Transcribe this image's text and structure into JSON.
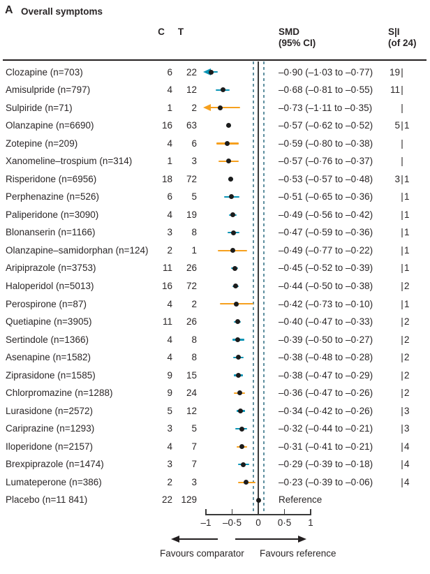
{
  "panel": {
    "label": "A",
    "title": "Overall symptoms"
  },
  "columns": {
    "c": "C",
    "t": "T",
    "smd": "SMD\n(95% CI)",
    "si": "S|I\n(of 24)",
    "si_separator": "|"
  },
  "axis": {
    "ticks": [
      "–1",
      "–0·5",
      "0",
      "0·5",
      "1"
    ],
    "range": [
      -1,
      1
    ],
    "reference_line": 0,
    "dashed_guides": [
      -0.1,
      0.1
    ],
    "left_label": "Favours comparator",
    "right_label": "Favours reference"
  },
  "colors": {
    "teal": "#0a94b5",
    "orange": "#f6a01e",
    "ink": "#1c1c1c"
  },
  "chart_data": {
    "type": "scatter",
    "variant": "forest-plot",
    "title": "A Overall symptoms",
    "xlabel": "SMD (95% CI)",
    "xlim": [
      -1,
      1
    ],
    "legend_position": "none",
    "grid": false,
    "rows": [
      {
        "name": "Clozapine (n=703)",
        "c": "6",
        "t": "22",
        "est": -0.9,
        "lo": -1.03,
        "hi": -0.77,
        "clipped": true,
        "color": "teal",
        "smd": "–0·90 (–1·03 to –0·77)",
        "si": {
          "s": "19",
          "i": ""
        }
      },
      {
        "name": "Amisulpride (n=797)",
        "c": "4",
        "t": "12",
        "est": -0.68,
        "lo": -0.81,
        "hi": -0.55,
        "clipped": false,
        "color": "teal",
        "smd": "–0·68 (–0·81 to –0·55)",
        "si": {
          "s": "11",
          "i": ""
        }
      },
      {
        "name": "Sulpiride (n=71)",
        "c": "1",
        "t": "2",
        "est": -0.73,
        "lo": -1.11,
        "hi": -0.35,
        "clipped": true,
        "color": "orange",
        "smd": "–0·73 (–1·11 to –0·35)",
        "si": {
          "s": "",
          "i": ""
        }
      },
      {
        "name": "Olanzapine (n=6690)",
        "c": "16",
        "t": "63",
        "est": -0.57,
        "lo": -0.62,
        "hi": -0.52,
        "clipped": false,
        "color": "teal",
        "smd": "–0·57 (–0·62 to –0·52)",
        "si": {
          "s": "5",
          "i": "1"
        }
      },
      {
        "name": "Zotepine (n=209)",
        "c": "4",
        "t": "6",
        "est": -0.59,
        "lo": -0.8,
        "hi": -0.38,
        "clipped": false,
        "color": "orange",
        "smd": "–0·59 (–0·80 to –0·38)",
        "si": {
          "s": "",
          "i": ""
        }
      },
      {
        "name": "Xanomeline–trospium (n=314)",
        "c": "1",
        "t": "3",
        "est": -0.57,
        "lo": -0.76,
        "hi": -0.37,
        "clipped": false,
        "color": "orange",
        "smd": "–0·57 (–0·76 to –0·37)",
        "si": {
          "s": "",
          "i": ""
        }
      },
      {
        "name": "Risperidone (n=6956)",
        "c": "18",
        "t": "72",
        "est": -0.53,
        "lo": -0.57,
        "hi": -0.48,
        "clipped": false,
        "color": "teal",
        "smd": "–0·53 (–0·57 to –0·48)",
        "si": {
          "s": "3",
          "i": "1"
        }
      },
      {
        "name": "Perphenazine (n=526)",
        "c": "6",
        "t": "5",
        "est": -0.51,
        "lo": -0.65,
        "hi": -0.36,
        "clipped": false,
        "color": "teal",
        "smd": "–0·51 (–0·65 to –0·36)",
        "si": {
          "s": "",
          "i": "1"
        }
      },
      {
        "name": "Paliperidone (n=3090)",
        "c": "4",
        "t": "19",
        "est": -0.49,
        "lo": -0.56,
        "hi": -0.42,
        "clipped": false,
        "color": "teal",
        "smd": "–0·49 (–0·56 to –0·42)",
        "si": {
          "s": "",
          "i": "1"
        }
      },
      {
        "name": "Blonanserin (n=1166)",
        "c": "3",
        "t": "8",
        "est": -0.47,
        "lo": -0.59,
        "hi": -0.36,
        "clipped": false,
        "color": "teal",
        "smd": "–0·47 (–0·59 to –0·36)",
        "si": {
          "s": "",
          "i": "1"
        }
      },
      {
        "name": "Olanzapine–samidorphan (n=124)",
        "c": "2",
        "t": "1",
        "est": -0.49,
        "lo": -0.77,
        "hi": -0.22,
        "clipped": false,
        "color": "orange",
        "smd": "–0·49 (–0·77 to –0·22)",
        "si": {
          "s": "",
          "i": "1"
        }
      },
      {
        "name": "Aripiprazole (n=3753)",
        "c": "11",
        "t": "26",
        "est": -0.45,
        "lo": -0.52,
        "hi": -0.39,
        "clipped": false,
        "color": "teal",
        "smd": "–0·45 (–0·52 to –0·39)",
        "si": {
          "s": "",
          "i": "1"
        }
      },
      {
        "name": "Haloperidol (n=5013)",
        "c": "16",
        "t": "72",
        "est": -0.44,
        "lo": -0.5,
        "hi": -0.38,
        "clipped": false,
        "color": "teal",
        "smd": "–0·44 (–0·50 to –0·38)",
        "si": {
          "s": "",
          "i": "2"
        }
      },
      {
        "name": "Perospirone (n=87)",
        "c": "4",
        "t": "2",
        "est": -0.42,
        "lo": -0.73,
        "hi": -0.1,
        "clipped": false,
        "color": "orange",
        "smd": "–0·42 (–0·73 to –0·10)",
        "si": {
          "s": "",
          "i": "1"
        }
      },
      {
        "name": "Quetiapine (n=3905)",
        "c": "11",
        "t": "26",
        "est": -0.4,
        "lo": -0.47,
        "hi": -0.33,
        "clipped": false,
        "color": "teal",
        "smd": "–0·40 (–0·47 to –0·33)",
        "si": {
          "s": "",
          "i": "2"
        }
      },
      {
        "name": "Sertindole (n=1366)",
        "c": "4",
        "t": "8",
        "est": -0.39,
        "lo": -0.5,
        "hi": -0.27,
        "clipped": false,
        "color": "teal",
        "smd": "–0·39 (–0·50 to –0·27)",
        "si": {
          "s": "",
          "i": "2"
        }
      },
      {
        "name": "Asenapine (n=1582)",
        "c": "4",
        "t": "8",
        "est": -0.38,
        "lo": -0.48,
        "hi": -0.28,
        "clipped": false,
        "color": "teal",
        "smd": "–0·38 (–0·48 to –0·28)",
        "si": {
          "s": "",
          "i": "2"
        }
      },
      {
        "name": "Ziprasidone (n=1585)",
        "c": "9",
        "t": "15",
        "est": -0.38,
        "lo": -0.47,
        "hi": -0.29,
        "clipped": false,
        "color": "teal",
        "smd": "–0·38 (–0·47 to –0·29)",
        "si": {
          "s": "",
          "i": "2"
        }
      },
      {
        "name": "Chlorpromazine (n=1288)",
        "c": "9",
        "t": "24",
        "est": -0.36,
        "lo": -0.47,
        "hi": -0.26,
        "clipped": false,
        "color": "orange",
        "smd": "–0·36 (–0·47 to –0·26)",
        "si": {
          "s": "",
          "i": "2"
        }
      },
      {
        "name": "Lurasidone (n=2572)",
        "c": "5",
        "t": "12",
        "est": -0.34,
        "lo": -0.42,
        "hi": -0.26,
        "clipped": false,
        "color": "teal",
        "smd": "–0·34 (–0·42 to –0·26)",
        "si": {
          "s": "",
          "i": "3"
        }
      },
      {
        "name": "Cariprazine (n=1293)",
        "c": "3",
        "t": "5",
        "est": -0.32,
        "lo": -0.44,
        "hi": -0.21,
        "clipped": false,
        "color": "teal",
        "smd": "–0·32 (–0·44 to –0·21)",
        "si": {
          "s": "",
          "i": "3"
        }
      },
      {
        "name": "Iloperidone (n=2157)",
        "c": "4",
        "t": "7",
        "est": -0.31,
        "lo": -0.41,
        "hi": -0.21,
        "clipped": false,
        "color": "orange",
        "smd": "–0·31 (–0·41 to –0·21)",
        "si": {
          "s": "",
          "i": "4"
        }
      },
      {
        "name": "Brexpiprazole (n=1474)",
        "c": "3",
        "t": "7",
        "est": -0.29,
        "lo": -0.39,
        "hi": -0.18,
        "clipped": false,
        "color": "teal",
        "smd": "–0·29 (–0·39 to –0·18)",
        "si": {
          "s": "",
          "i": "4"
        }
      },
      {
        "name": "Lumateperone (n=386)",
        "c": "2",
        "t": "3",
        "est": -0.23,
        "lo": -0.39,
        "hi": -0.06,
        "clipped": false,
        "color": "orange",
        "smd": "–0·23 (–0·39 to –0·06)",
        "si": {
          "s": "",
          "i": "4"
        }
      },
      {
        "name": "Placebo (n=11 841)",
        "c": "22",
        "t": "129",
        "est": 0,
        "lo": null,
        "hi": null,
        "clipped": false,
        "color": "ink",
        "smd": "Reference",
        "si": null
      }
    ]
  }
}
